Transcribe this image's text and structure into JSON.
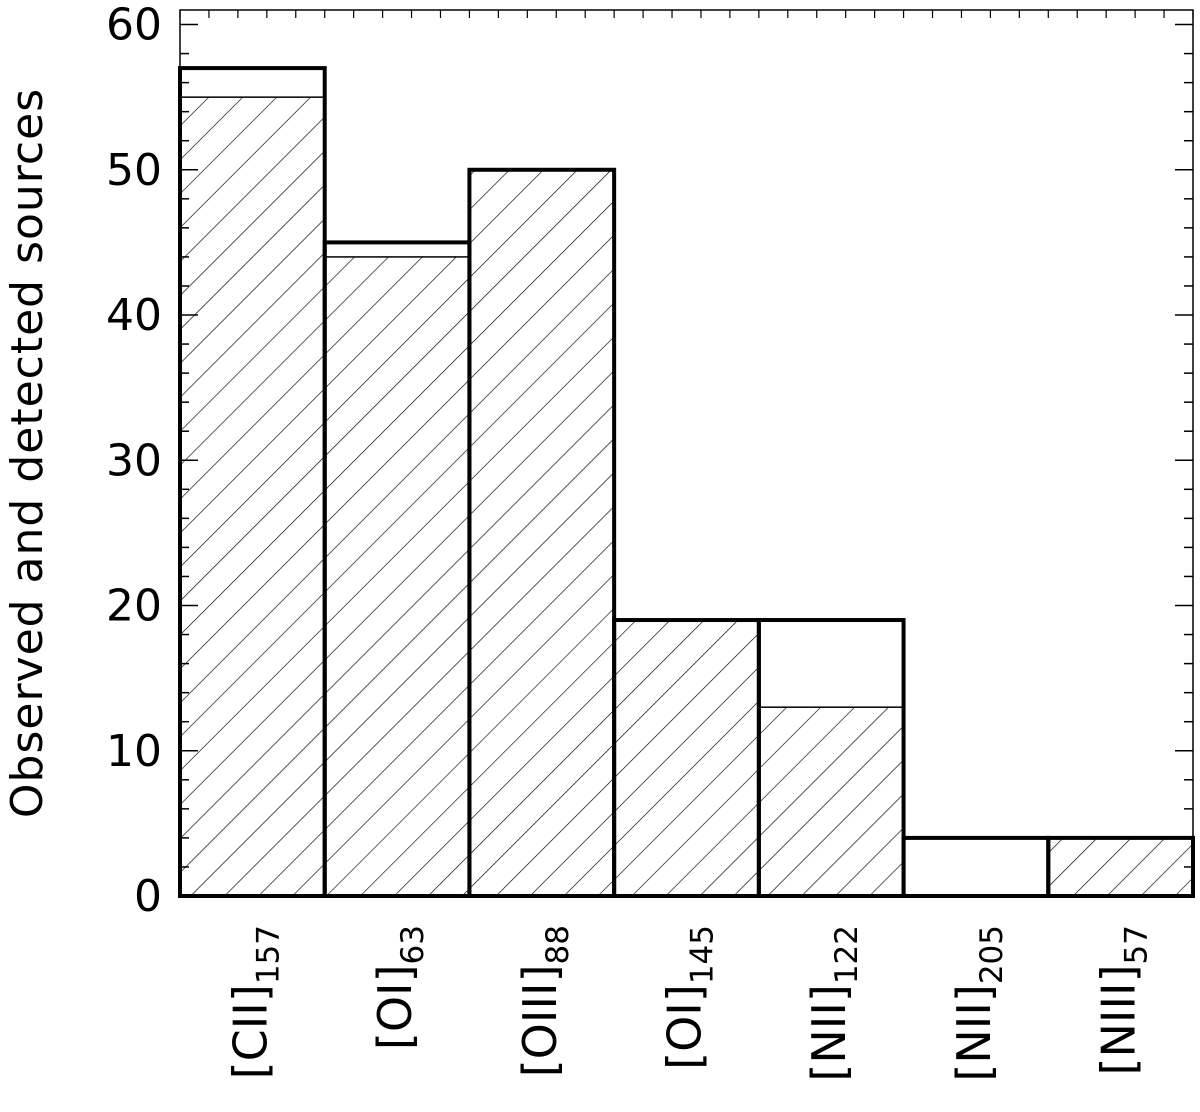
{
  "chart_data": {
    "type": "bar",
    "ylabel": "Observed and detected sources",
    "ylim": [
      0,
      61
    ],
    "yticks": [
      "0",
      "10",
      "20",
      "30",
      "40",
      "50",
      "60"
    ],
    "grid": false,
    "hatch": "diagonal",
    "categories": [
      {
        "main": "[CII]",
        "sub": "157"
      },
      {
        "main": "[OI]",
        "sub": "63"
      },
      {
        "main": "[OIII]",
        "sub": "88"
      },
      {
        "main": "[OI]",
        "sub": "145"
      },
      {
        "main": "[NII]",
        "sub": "122"
      },
      {
        "main": "[NII]",
        "sub": "205"
      },
      {
        "main": "[NIII]",
        "sub": "57"
      }
    ],
    "series": [
      {
        "name": "Observed",
        "values": [
          57,
          45,
          50,
          19,
          19,
          4,
          4
        ]
      },
      {
        "name": "Detected",
        "values": [
          55,
          44,
          50,
          19,
          13,
          0,
          4
        ]
      }
    ]
  }
}
